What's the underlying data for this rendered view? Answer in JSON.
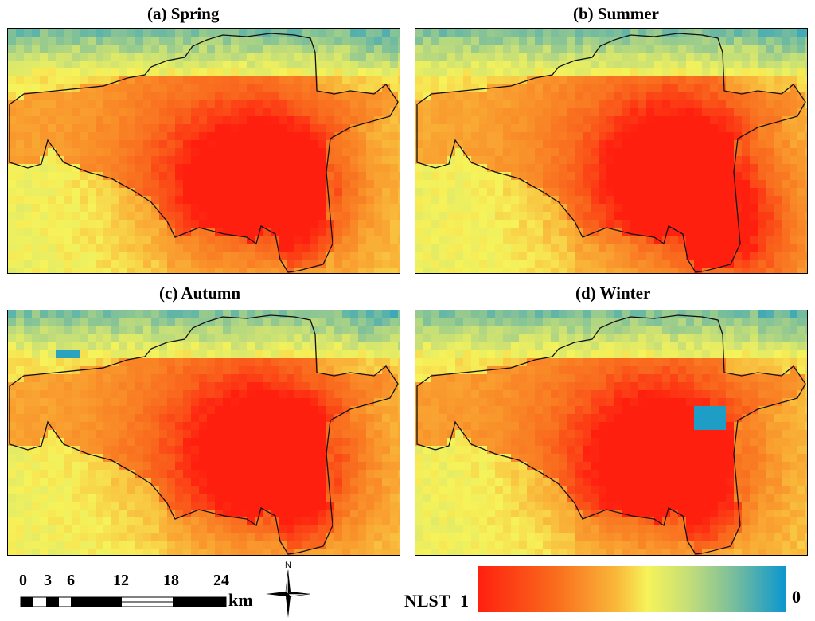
{
  "panels": [
    {
      "title": "(a) Spring",
      "season": "spring"
    },
    {
      "title": "(b) Summer",
      "season": "summer"
    },
    {
      "title": "(c) Autumn",
      "season": "autumn"
    },
    {
      "title": "(d) Winter",
      "season": "winter"
    }
  ],
  "scale_bar": {
    "ticks": [
      "0",
      "3",
      "6",
      "12",
      "18",
      "24"
    ],
    "unit": "km"
  },
  "compass": {
    "label": "N"
  },
  "legend": {
    "title": "NLST",
    "max_label": "1",
    "min_label": "0",
    "colors": {
      "high": "#ff1f0f",
      "mid": "#f6f35a",
      "low": "#0a96cf"
    }
  }
}
